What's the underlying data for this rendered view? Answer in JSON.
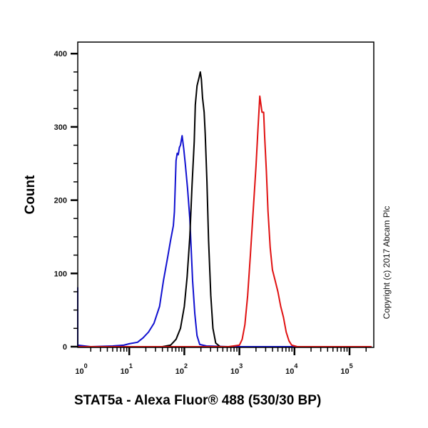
{
  "chart_data": {
    "type": "line",
    "title": "",
    "xlabel": "STAT5a - Alexa Fluor® 488 (530/30 BP)",
    "ylabel": "Count",
    "xscale": "log",
    "xlim": [
      0.6,
      250000
    ],
    "ylim": [
      0,
      400
    ],
    "x_ticks": [
      "10^0",
      "10^1",
      "10^2",
      "10^3",
      "10^4",
      "10^5"
    ],
    "y_ticks": [
      0,
      100,
      200,
      300,
      400
    ],
    "grid": false,
    "legend": null,
    "annotations": [
      "Copyright (c) 2017 Abcam Plc"
    ],
    "series": [
      {
        "name": "blue",
        "color": "#1010d0",
        "points_log10x_count": [
          [
            -0.08,
            81
          ],
          [
            -0.05,
            40
          ],
          [
            0.0,
            5
          ],
          [
            0.05,
            2
          ],
          [
            0.3,
            0
          ],
          [
            0.7,
            1
          ],
          [
            0.9,
            2
          ],
          [
            1.0,
            4
          ],
          [
            1.15,
            6
          ],
          [
            1.25,
            12
          ],
          [
            1.35,
            20
          ],
          [
            1.45,
            32
          ],
          [
            1.55,
            55
          ],
          [
            1.62,
            90
          ],
          [
            1.7,
            123
          ],
          [
            1.75,
            145
          ],
          [
            1.8,
            165
          ],
          [
            1.82,
            184
          ],
          [
            1.85,
            254
          ],
          [
            1.87,
            264
          ],
          [
            1.89,
            262
          ],
          [
            1.91,
            272
          ],
          [
            1.93,
            275
          ],
          [
            1.96,
            288
          ],
          [
            1.99,
            270
          ],
          [
            2.02,
            248
          ],
          [
            2.06,
            215
          ],
          [
            2.1,
            175
          ],
          [
            2.13,
            125
          ],
          [
            2.15,
            90
          ],
          [
            2.19,
            45
          ],
          [
            2.23,
            15
          ],
          [
            2.28,
            3
          ],
          [
            2.4,
            1
          ],
          [
            2.8,
            0
          ],
          [
            5.4,
            0
          ]
        ]
      },
      {
        "name": "black",
        "color": "#000000",
        "points_log10x_count": [
          [
            1.6,
            0
          ],
          [
            1.75,
            2
          ],
          [
            1.85,
            10
          ],
          [
            1.93,
            25
          ],
          [
            2.0,
            55
          ],
          [
            2.05,
            95
          ],
          [
            2.1,
            150
          ],
          [
            2.14,
            220
          ],
          [
            2.18,
            280
          ],
          [
            2.2,
            330
          ],
          [
            2.23,
            356
          ],
          [
            2.25,
            362
          ],
          [
            2.27,
            368
          ],
          [
            2.29,
            375
          ],
          [
            2.31,
            365
          ],
          [
            2.33,
            340
          ],
          [
            2.36,
            320
          ],
          [
            2.38,
            290
          ],
          [
            2.41,
            225
          ],
          [
            2.44,
            145
          ],
          [
            2.48,
            70
          ],
          [
            2.52,
            25
          ],
          [
            2.57,
            5
          ],
          [
            2.65,
            0
          ]
        ]
      },
      {
        "name": "red",
        "color": "#e01010",
        "points_log10x_count": [
          [
            -0.1,
            0
          ],
          [
            2.8,
            0
          ],
          [
            3.0,
            2
          ],
          [
            3.05,
            10
          ],
          [
            3.1,
            30
          ],
          [
            3.15,
            70
          ],
          [
            3.2,
            125
          ],
          [
            3.25,
            185
          ],
          [
            3.3,
            245
          ],
          [
            3.34,
            300
          ],
          [
            3.37,
            342
          ],
          [
            3.41,
            320
          ],
          [
            3.44,
            320
          ],
          [
            3.46,
            285
          ],
          [
            3.49,
            240
          ],
          [
            3.52,
            185
          ],
          [
            3.56,
            135
          ],
          [
            3.6,
            105
          ],
          [
            3.65,
            90
          ],
          [
            3.7,
            75
          ],
          [
            3.75,
            55
          ],
          [
            3.8,
            40
          ],
          [
            3.85,
            20
          ],
          [
            3.9,
            8
          ],
          [
            3.95,
            2
          ],
          [
            4.05,
            0
          ],
          [
            5.4,
            0
          ]
        ]
      }
    ]
  },
  "axes": {
    "y_tick_labels": [
      "0",
      "100",
      "200",
      "300",
      "400"
    ],
    "x_tick_bases": [
      "10",
      "10",
      "10",
      "10",
      "10",
      "10"
    ],
    "x_tick_exponents": [
      "0",
      "1",
      "2",
      "3",
      "4",
      "5"
    ]
  },
  "labels": {
    "ylabel": "Count",
    "xlabel": "STAT5a - Alexa Fluor® 488 (530/30 BP)",
    "copyright": "Copyright (c) 2017 Abcam Plc"
  }
}
